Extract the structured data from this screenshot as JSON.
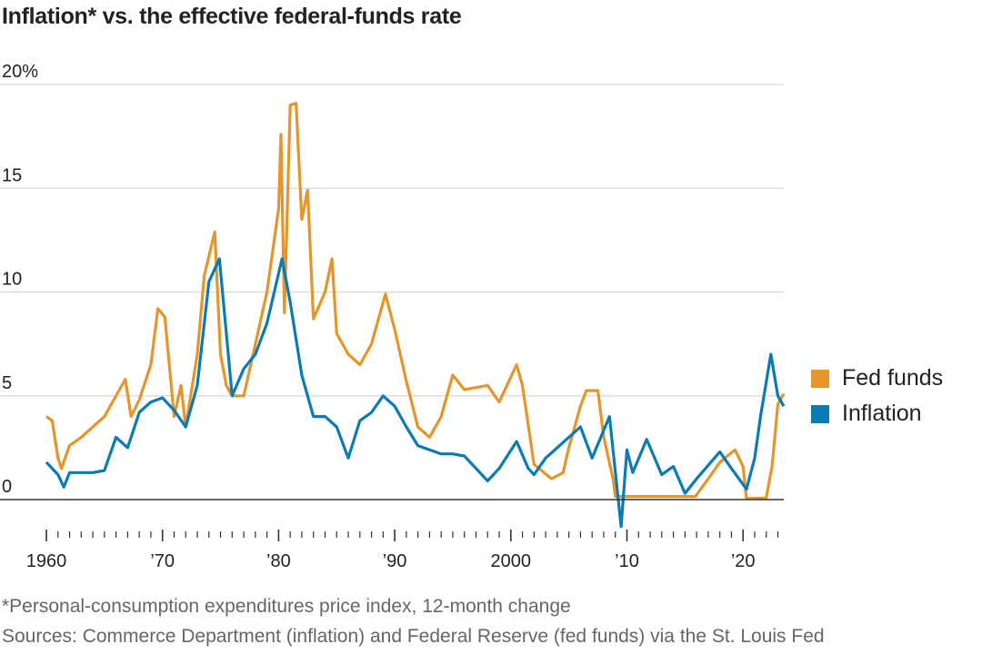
{
  "title": "Inflation* vs. the effective federal-funds rate",
  "footnote": "*Personal-consumption expenditures price index, 12-month change",
  "sources": "Sources: Commerce Department (inflation) and Federal Reserve (fed funds) via the St. Louis Fed",
  "chart_data": {
    "type": "line",
    "title": "Inflation* vs. the effective federal-funds rate",
    "xlabel": "",
    "ylabel": "",
    "xlim": [
      1960,
      2023.5
    ],
    "ylim": [
      -2,
      20
    ],
    "y_ticks": [
      {
        "value": 0,
        "label": "0"
      },
      {
        "value": 5,
        "label": "5"
      },
      {
        "value": 10,
        "label": "10"
      },
      {
        "value": 15,
        "label": "15"
      },
      {
        "value": 20,
        "label": "20%"
      }
    ],
    "x_ticks": [
      {
        "value": 1960,
        "label": "1960"
      },
      {
        "value": 1970,
        "label": "’70"
      },
      {
        "value": 1980,
        "label": "’80"
      },
      {
        "value": 1990,
        "label": "’90"
      },
      {
        "value": 2000,
        "label": "2000"
      },
      {
        "value": 2010,
        "label": "’10"
      },
      {
        "value": 2020,
        "label": "’20"
      }
    ],
    "grid": true,
    "legend_placement": "right",
    "series": [
      {
        "name": "Fed funds",
        "color": "#e5952a",
        "points": [
          [
            1960,
            4.0
          ],
          [
            1960.5,
            3.8
          ],
          [
            1961,
            2.0
          ],
          [
            1961.3,
            1.5
          ],
          [
            1962,
            2.6
          ],
          [
            1963,
            3.0
          ],
          [
            1964,
            3.5
          ],
          [
            1965,
            4.0
          ],
          [
            1966,
            5.0
          ],
          [
            1966.8,
            5.8
          ],
          [
            1967.3,
            4.0
          ],
          [
            1968,
            4.8
          ],
          [
            1969,
            6.5
          ],
          [
            1969.6,
            9.2
          ],
          [
            1970.2,
            8.8
          ],
          [
            1971,
            4.0
          ],
          [
            1971.6,
            5.5
          ],
          [
            1972,
            3.5
          ],
          [
            1973,
            7.0
          ],
          [
            1973.6,
            10.8
          ],
          [
            1974.5,
            12.9
          ],
          [
            1975,
            7.0
          ],
          [
            1975.5,
            5.5
          ],
          [
            1976,
            5.0
          ],
          [
            1977,
            5.0
          ],
          [
            1978,
            7.5
          ],
          [
            1979,
            10.0
          ],
          [
            1980,
            14.0
          ],
          [
            1980.2,
            17.6
          ],
          [
            1980.5,
            9.0
          ],
          [
            1981,
            19.0
          ],
          [
            1981.5,
            19.1
          ],
          [
            1982,
            13.5
          ],
          [
            1982.5,
            14.9
          ],
          [
            1983,
            8.7
          ],
          [
            1984,
            10.0
          ],
          [
            1984.6,
            11.6
          ],
          [
            1985,
            8.0
          ],
          [
            1986,
            7.0
          ],
          [
            1987,
            6.5
          ],
          [
            1988,
            7.5
          ],
          [
            1989.2,
            9.9
          ],
          [
            1990,
            8.2
          ],
          [
            1991,
            5.7
          ],
          [
            1992,
            3.5
          ],
          [
            1993,
            3.0
          ],
          [
            1994,
            4.0
          ],
          [
            1995,
            6.0
          ],
          [
            1996,
            5.3
          ],
          [
            1998,
            5.5
          ],
          [
            1999,
            4.7
          ],
          [
            2000.5,
            6.5
          ],
          [
            2001,
            5.5
          ],
          [
            2002,
            1.7
          ],
          [
            2003.5,
            1.0
          ],
          [
            2004.5,
            1.3
          ],
          [
            2005,
            2.5
          ],
          [
            2006,
            4.5
          ],
          [
            2006.5,
            5.25
          ],
          [
            2007.5,
            5.25
          ],
          [
            2008,
            3.0
          ],
          [
            2008.8,
            1.0
          ],
          [
            2009,
            0.15
          ],
          [
            2015.9,
            0.15
          ],
          [
            2017,
            1.0
          ],
          [
            2018,
            1.8
          ],
          [
            2019.3,
            2.4
          ],
          [
            2020,
            1.6
          ],
          [
            2020.3,
            0.05
          ],
          [
            2022,
            0.08
          ],
          [
            2022.5,
            1.6
          ],
          [
            2023,
            4.6
          ],
          [
            2023.5,
            5.1
          ]
        ]
      },
      {
        "name": "Inflation",
        "color": "#0b7bb4",
        "points": [
          [
            1960,
            1.8
          ],
          [
            1961,
            1.2
          ],
          [
            1961.5,
            0.6
          ],
          [
            1962,
            1.3
          ],
          [
            1964,
            1.3
          ],
          [
            1965,
            1.4
          ],
          [
            1966,
            3.0
          ],
          [
            1967,
            2.5
          ],
          [
            1968,
            4.2
          ],
          [
            1969,
            4.7
          ],
          [
            1970,
            4.9
          ],
          [
            1971,
            4.3
          ],
          [
            1972,
            3.5
          ],
          [
            1973,
            5.5
          ],
          [
            1974,
            10.5
          ],
          [
            1974.9,
            11.6
          ],
          [
            1976,
            5.0
          ],
          [
            1977,
            6.3
          ],
          [
            1978,
            7.0
          ],
          [
            1979,
            8.5
          ],
          [
            1980.3,
            11.6
          ],
          [
            1981,
            9.5
          ],
          [
            1982,
            6.0
          ],
          [
            1983,
            4.0
          ],
          [
            1984,
            4.0
          ],
          [
            1985,
            3.5
          ],
          [
            1986,
            2.0
          ],
          [
            1987,
            3.8
          ],
          [
            1988,
            4.2
          ],
          [
            1989,
            5.0
          ],
          [
            1990,
            4.5
          ],
          [
            1991,
            3.5
          ],
          [
            1992,
            2.6
          ],
          [
            1994,
            2.2
          ],
          [
            1995,
            2.2
          ],
          [
            1996,
            2.1
          ],
          [
            1997,
            1.5
          ],
          [
            1998,
            0.9
          ],
          [
            1999,
            1.5
          ],
          [
            2000.5,
            2.8
          ],
          [
            2001.5,
            1.5
          ],
          [
            2002,
            1.2
          ],
          [
            2003,
            2.0
          ],
          [
            2005,
            3.0
          ],
          [
            2006,
            3.5
          ],
          [
            2007,
            2.0
          ],
          [
            2008.5,
            4.0
          ],
          [
            2009.5,
            -1.3
          ],
          [
            2010,
            2.4
          ],
          [
            2010.5,
            1.3
          ],
          [
            2011.7,
            2.9
          ],
          [
            2013,
            1.2
          ],
          [
            2014,
            1.6
          ],
          [
            2015,
            0.3
          ],
          [
            2016,
            1.0
          ],
          [
            2018,
            2.3
          ],
          [
            2019,
            1.5
          ],
          [
            2020.3,
            0.5
          ],
          [
            2021,
            2.0
          ],
          [
            2021.5,
            4.0
          ],
          [
            2022.4,
            7.0
          ],
          [
            2023,
            5.0
          ],
          [
            2023.5,
            4.5
          ]
        ]
      }
    ]
  }
}
